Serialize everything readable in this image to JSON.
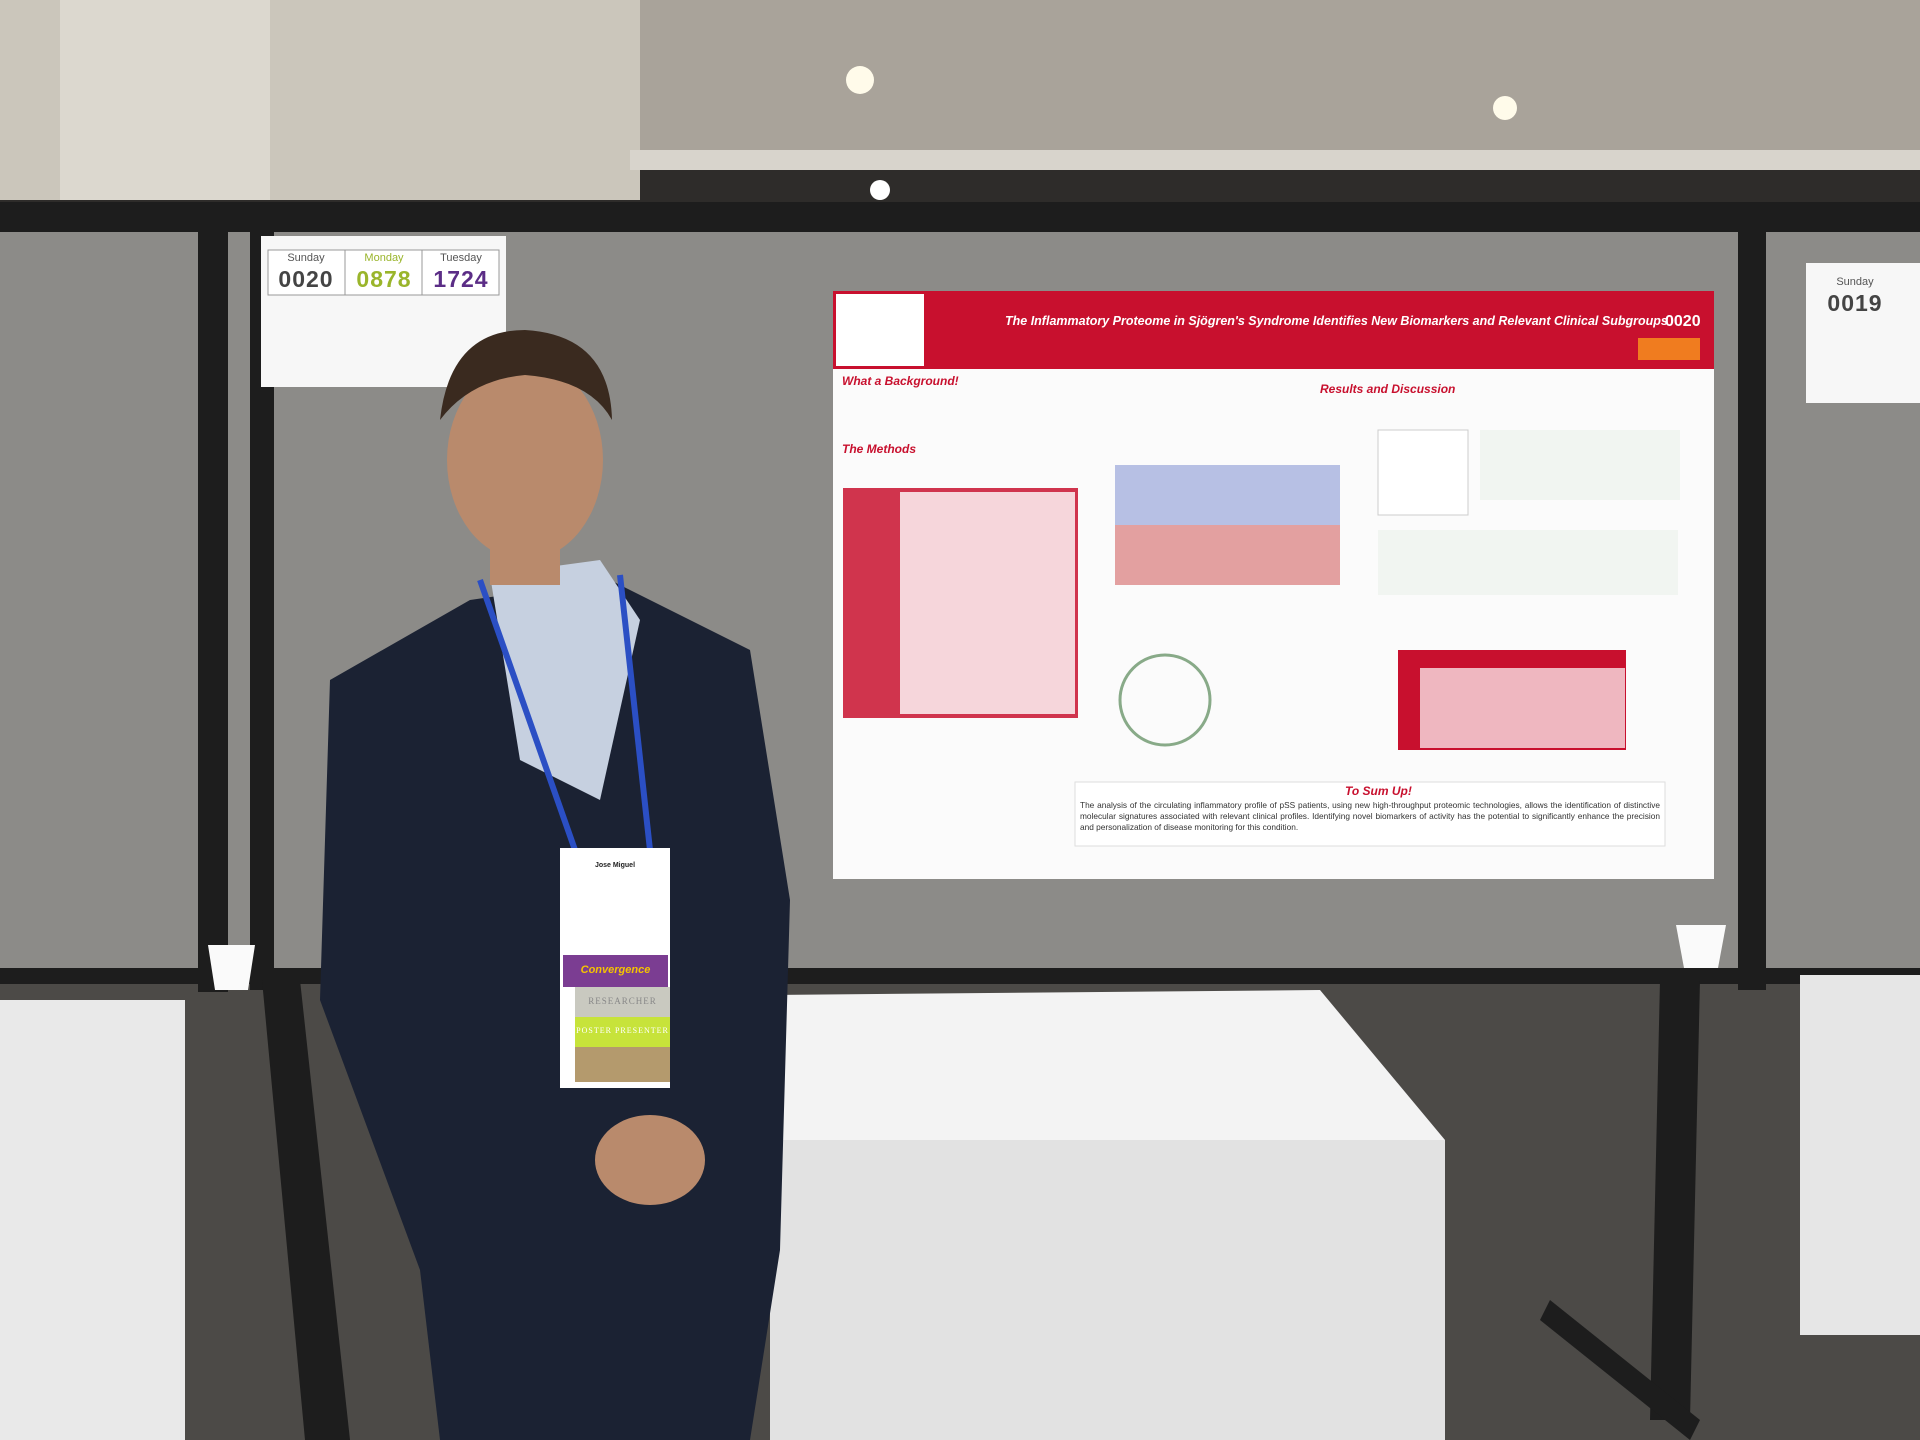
{
  "schedule_sign_left": {
    "days": [
      "Sunday",
      "Monday",
      "Tuesday"
    ],
    "numbers": [
      "0020",
      "0878",
      "1724"
    ]
  },
  "schedule_sign_right": {
    "day": "Sunday",
    "number": "0019"
  },
  "poster": {
    "title": "The Inflammatory Proteome in Sjögren's Syndrome Identifies New Biomarkers and Relevant Clinical Subgroups",
    "number": "0020",
    "sections": [
      "What a Background!",
      "The Methods",
      "Results and Discussion",
      "To Sum Up!"
    ],
    "summary": "The analysis of the circulating inflammatory profile of pSS patients, using new high-throughput proteomic technologies, allows the identification of distinctive molecular signatures associated with relevant clinical profiles. Identifying novel biomarkers of activity has the potential to significantly enhance the precision and personalization of disease monitoring for this condition."
  },
  "badge": {
    "name": "Jose Miguel",
    "event": "Convergence",
    "ribbons": [
      "RESEARCHER",
      "POSTER PRESENTER"
    ]
  }
}
